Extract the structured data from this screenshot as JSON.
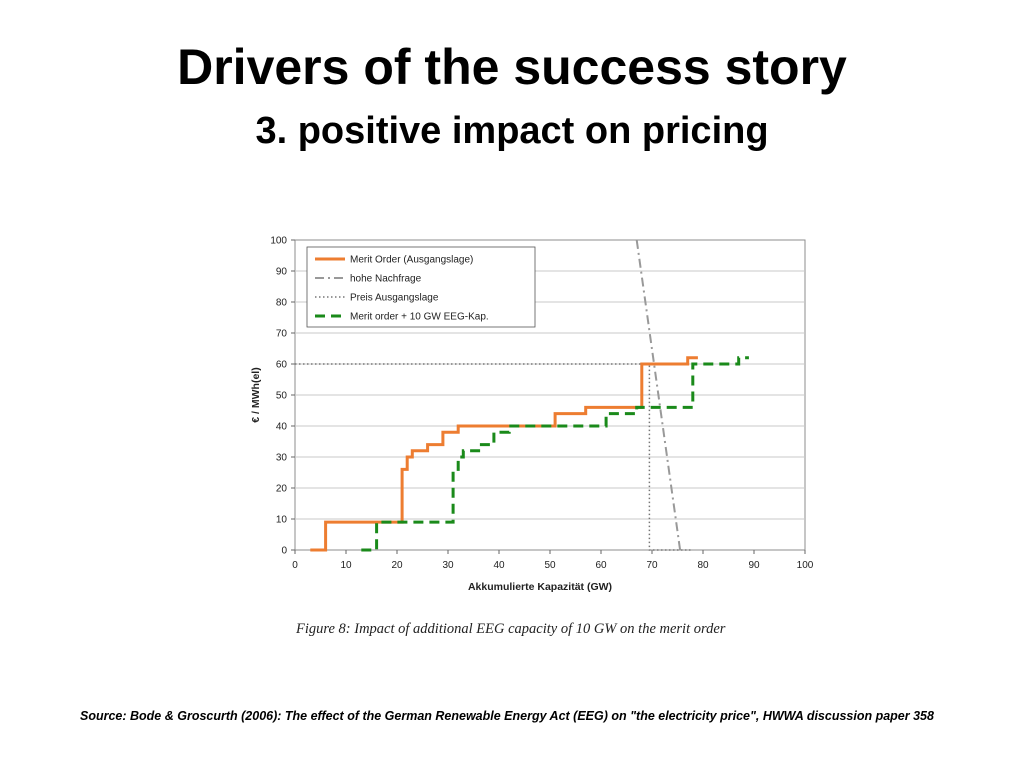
{
  "slide": {
    "title": "Drivers of the success story",
    "subtitle": "3. positive impact on pricing",
    "caption": "Figure 8: Impact of additional EEG capacity of 10 GW on the merit order",
    "source": "Source: Bode & Groscurth (2006): The effect of the German Renewable Energy Act (EEG) on \"the electricity price\", HWWA discussion paper 358"
  },
  "chart_data": {
    "type": "line",
    "title": "",
    "xlabel": "Akkumulierte Kapazität (GW)",
    "ylabel": "€ / MWh(el)",
    "xlim": [
      0,
      100
    ],
    "ylim": [
      0,
      100
    ],
    "xticks": [
      0,
      10,
      20,
      30,
      40,
      50,
      60,
      70,
      80,
      90,
      100
    ],
    "yticks": [
      0,
      10,
      20,
      30,
      40,
      50,
      60,
      70,
      80,
      90,
      100
    ],
    "grid": "horizontal",
    "legend_position": "top-left",
    "series": [
      {
        "name": "Merit Order (Ausgangslage)",
        "color": "#ED7D31",
        "style": "solid",
        "points": [
          [
            3,
            0
          ],
          [
            6,
            0
          ],
          [
            6,
            9
          ],
          [
            21,
            9
          ],
          [
            21,
            26
          ],
          [
            22,
            26
          ],
          [
            22,
            30
          ],
          [
            23,
            30
          ],
          [
            23,
            32
          ],
          [
            26,
            32
          ],
          [
            26,
            34
          ],
          [
            29,
            34
          ],
          [
            29,
            38
          ],
          [
            32,
            38
          ],
          [
            32,
            40
          ],
          [
            51,
            40
          ],
          [
            51,
            44
          ],
          [
            57,
            44
          ],
          [
            57,
            46
          ],
          [
            68,
            46
          ],
          [
            68,
            60
          ],
          [
            77,
            60
          ],
          [
            77,
            62
          ],
          [
            79,
            62
          ]
        ]
      },
      {
        "name": "hohe Nachfrage",
        "color": "#999999",
        "style": "dashdot",
        "points": [
          [
            67,
            100
          ],
          [
            75.5,
            0
          ]
        ]
      },
      {
        "name": "Preis Ausgangslage",
        "color": "#777777",
        "style": "dotted",
        "points": [
          [
            0,
            60
          ],
          [
            69.5,
            60
          ],
          [
            69.5,
            0
          ],
          [
            78,
            0
          ]
        ]
      },
      {
        "name": "Merit order + 10 GW EEG-Kap.",
        "color": "#1A8A1A",
        "style": "dashed",
        "points": [
          [
            13,
            0
          ],
          [
            16,
            0
          ],
          [
            16,
            9
          ],
          [
            31,
            9
          ],
          [
            31,
            26
          ],
          [
            32,
            26
          ],
          [
            32,
            30
          ],
          [
            33,
            30
          ],
          [
            33,
            32
          ],
          [
            36,
            32
          ],
          [
            36,
            34
          ],
          [
            39,
            34
          ],
          [
            39,
            38
          ],
          [
            42,
            38
          ],
          [
            42,
            40
          ],
          [
            61,
            40
          ],
          [
            61,
            44
          ],
          [
            67,
            44
          ],
          [
            67,
            46
          ],
          [
            78,
            46
          ],
          [
            78,
            60
          ],
          [
            87,
            60
          ],
          [
            87,
            62
          ],
          [
            89,
            62
          ]
        ]
      }
    ]
  }
}
